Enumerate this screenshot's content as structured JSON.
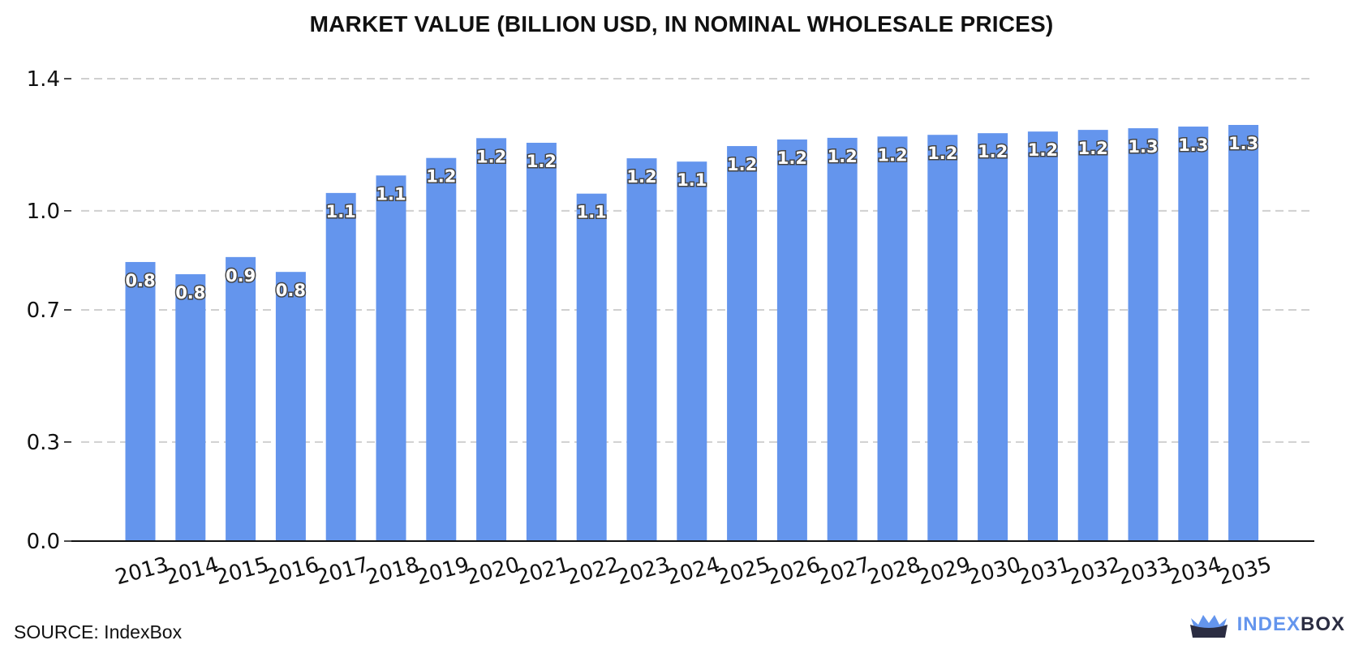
{
  "chart_data": {
    "type": "bar",
    "title": "MARKET VALUE (BILLION USD, IN NOMINAL WHOLESALE PRICES)",
    "xlabel": "",
    "ylabel": "",
    "categories": [
      "2013",
      "2014",
      "2015",
      "2016",
      "2017",
      "2018",
      "2019",
      "2020",
      "2021",
      "2022",
      "2023",
      "2024",
      "2025",
      "2026",
      "2027",
      "2028",
      "2029",
      "2030",
      "2031",
      "2032",
      "2033",
      "2034",
      "2035"
    ],
    "values": [
      0.845,
      0.808,
      0.86,
      0.815,
      1.054,
      1.107,
      1.16,
      1.22,
      1.206,
      1.052,
      1.159,
      1.149,
      1.196,
      1.216,
      1.221,
      1.225,
      1.23,
      1.235,
      1.24,
      1.245,
      1.25,
      1.255,
      1.26
    ],
    "data_labels": [
      "0.8",
      "0.8",
      "0.9",
      "0.8",
      "1.1",
      "1.1",
      "1.2",
      "1.2",
      "1.2",
      "1.1",
      "1.2",
      "1.1",
      "1.2",
      "1.2",
      "1.2",
      "1.2",
      "1.2",
      "1.2",
      "1.2",
      "1.2",
      "1.3",
      "1.3",
      "1.3"
    ],
    "yticks": [
      0.0,
      0.3,
      0.7,
      1.0,
      1.4
    ],
    "ytick_labels": [
      "0.0",
      "0.3",
      "0.7",
      "1.0",
      "1.4"
    ],
    "ylim": [
      0.0,
      1.4
    ],
    "grid": true,
    "legend": "none",
    "bar_color": "#6495ED"
  },
  "footer": {
    "source": "SOURCE: IndexBox",
    "brand_primary": "INDEX",
    "brand_secondary": "BOX"
  }
}
